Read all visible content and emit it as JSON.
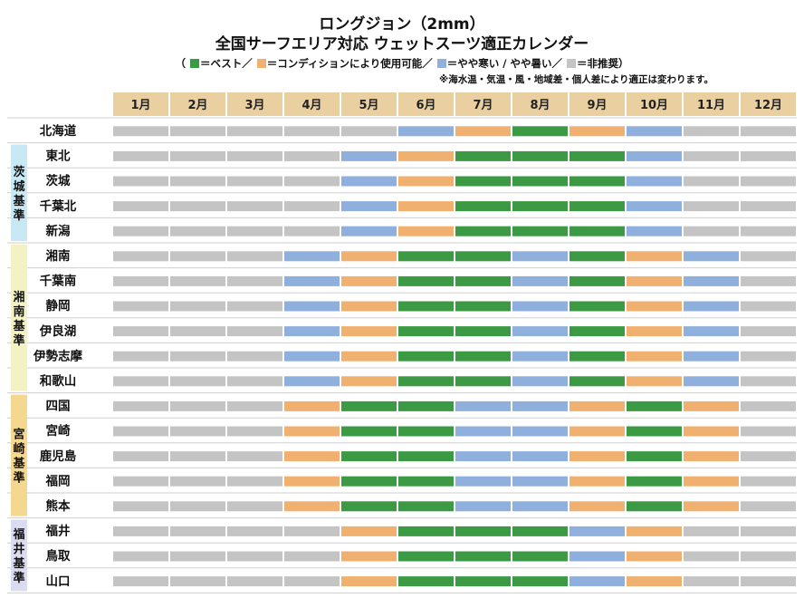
{
  "title": "ロングジョン（2mm）",
  "subtitle": "全国サーフエリア対応 ウェットスーツ適正カレンダー",
  "legend": {
    "open": "（",
    "best": "＝ベスト／",
    "usable": "＝コンディションにより使用可能／",
    "mild": "＝やや寒い / やや暑い／",
    "not_recommended": "＝非推奨）"
  },
  "note": "※海水温・気温・風・地域差・個人差により適正は変わります。",
  "colors": {
    "best": "#3c9a45",
    "usable": "#f0b070",
    "mild": "#8fb0dc",
    "not_recommended": "#c4c4c4",
    "header_bg": "#ead0a0",
    "row_line": "#cfcfcf"
  },
  "chart_data": {
    "type": "table",
    "months": [
      "1月",
      "2月",
      "3月",
      "4月",
      "5月",
      "6月",
      "7月",
      "8月",
      "9月",
      "10月",
      "11月",
      "12月"
    ],
    "status_codes": {
      "B": "ベスト",
      "U": "コンディションにより使用可能",
      "M": "やや寒い / やや暑い",
      "N": "非推奨"
    },
    "groups": [
      {
        "label": "",
        "color": null,
        "areas": [
          {
            "name": "北海道",
            "months": [
              "N",
              "N",
              "N",
              "N",
              "N",
              "M",
              "U",
              "B",
              "U",
              "M",
              "N",
              "N"
            ]
          }
        ]
      },
      {
        "label": "茨城基準",
        "color": "#c8e8f4",
        "areas": [
          {
            "name": "東北",
            "months": [
              "N",
              "N",
              "N",
              "N",
              "M",
              "U",
              "B",
              "B",
              "B",
              "M",
              "N",
              "N"
            ]
          },
          {
            "name": "茨城",
            "months": [
              "N",
              "N",
              "N",
              "N",
              "M",
              "U",
              "B",
              "B",
              "B",
              "M",
              "N",
              "N"
            ]
          },
          {
            "name": "千葉北",
            "months": [
              "N",
              "N",
              "N",
              "N",
              "M",
              "U",
              "B",
              "B",
              "B",
              "M",
              "N",
              "N"
            ]
          },
          {
            "name": "新潟",
            "months": [
              "N",
              "N",
              "N",
              "N",
              "M",
              "U",
              "B",
              "B",
              "B",
              "M",
              "N",
              "N"
            ]
          }
        ]
      },
      {
        "label": "湘南基準",
        "color": "#f2f2c4",
        "areas": [
          {
            "name": "湘南",
            "months": [
              "N",
              "N",
              "N",
              "M",
              "U",
              "B",
              "B",
              "M",
              "B",
              "U",
              "M",
              "N"
            ]
          },
          {
            "name": "千葉南",
            "months": [
              "N",
              "N",
              "N",
              "M",
              "U",
              "B",
              "B",
              "M",
              "B",
              "U",
              "M",
              "N"
            ]
          },
          {
            "name": "静岡",
            "months": [
              "N",
              "N",
              "N",
              "M",
              "U",
              "B",
              "B",
              "M",
              "B",
              "U",
              "M",
              "N"
            ]
          },
          {
            "name": "伊良湖",
            "months": [
              "N",
              "N",
              "N",
              "M",
              "U",
              "B",
              "B",
              "M",
              "B",
              "U",
              "M",
              "N"
            ]
          },
          {
            "name": "伊勢志摩",
            "months": [
              "N",
              "N",
              "N",
              "M",
              "U",
              "B",
              "B",
              "M",
              "B",
              "U",
              "M",
              "N"
            ]
          },
          {
            "name": "和歌山",
            "months": [
              "N",
              "N",
              "N",
              "M",
              "U",
              "B",
              "B",
              "M",
              "B",
              "U",
              "M",
              "N"
            ]
          }
        ]
      },
      {
        "label": "宮崎基準",
        "color": "#f4d890",
        "areas": [
          {
            "name": "四国",
            "months": [
              "N",
              "N",
              "N",
              "U",
              "B",
              "B",
              "M",
              "M",
              "U",
              "B",
              "U",
              "N"
            ]
          },
          {
            "name": "宮崎",
            "months": [
              "N",
              "N",
              "N",
              "U",
              "B",
              "B",
              "M",
              "M",
              "U",
              "B",
              "U",
              "N"
            ]
          },
          {
            "name": "鹿児島",
            "months": [
              "N",
              "N",
              "N",
              "U",
              "B",
              "B",
              "M",
              "M",
              "U",
              "B",
              "U",
              "N"
            ]
          },
          {
            "name": "福岡",
            "months": [
              "N",
              "N",
              "N",
              "U",
              "B",
              "B",
              "M",
              "M",
              "U",
              "B",
              "U",
              "N"
            ]
          },
          {
            "name": "熊本",
            "months": [
              "N",
              "N",
              "N",
              "U",
              "B",
              "B",
              "M",
              "M",
              "U",
              "B",
              "U",
              "N"
            ]
          }
        ]
      },
      {
        "label": "福井基準",
        "color": "#dcdcf0",
        "areas": [
          {
            "name": "福井",
            "months": [
              "N",
              "N",
              "N",
              "N",
              "U",
              "B",
              "B",
              "B",
              "M",
              "U",
              "N",
              "N"
            ]
          },
          {
            "name": "鳥取",
            "months": [
              "N",
              "N",
              "N",
              "N",
              "U",
              "B",
              "B",
              "B",
              "M",
              "U",
              "N",
              "N"
            ]
          },
          {
            "name": "山口",
            "months": [
              "N",
              "N",
              "N",
              "N",
              "U",
              "B",
              "B",
              "B",
              "M",
              "U",
              "N",
              "N"
            ]
          }
        ]
      }
    ]
  }
}
